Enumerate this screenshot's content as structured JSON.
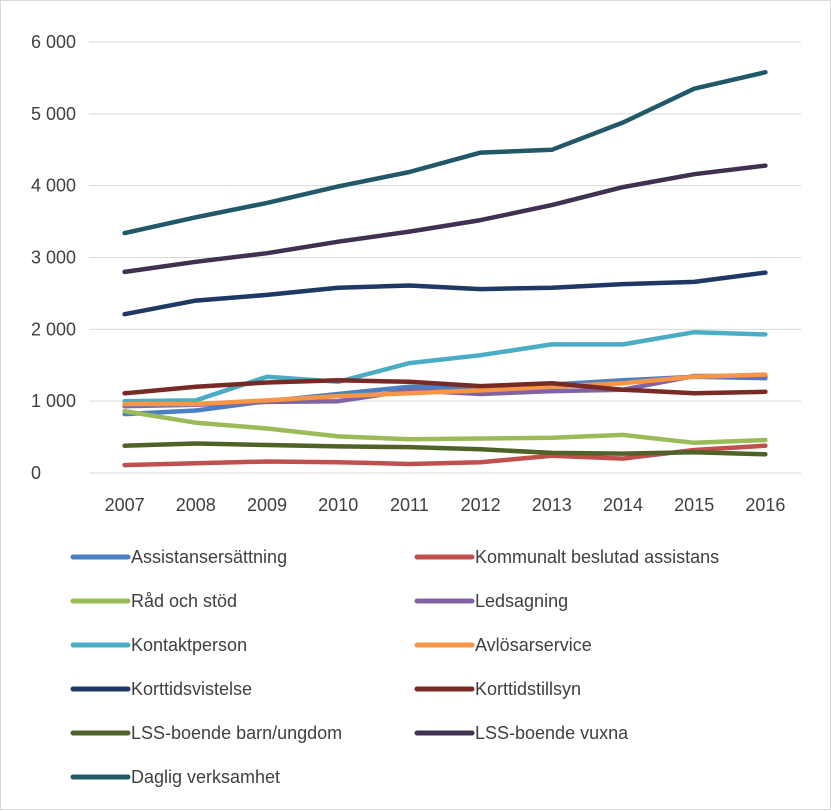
{
  "chart_data": {
    "type": "line",
    "title": "",
    "xlabel": "",
    "ylabel": "",
    "categories": [
      "2007",
      "2008",
      "2009",
      "2010",
      "2011",
      "2012",
      "2013",
      "2014",
      "2015",
      "2016"
    ],
    "ylim": [
      0,
      6000
    ],
    "yticks": [
      0,
      1000,
      2000,
      3000,
      4000,
      5000,
      6000
    ],
    "ytick_labels": [
      "0",
      "1 000",
      "2 000",
      "3 000",
      "4 000",
      "5 000",
      "6 000"
    ],
    "grid": "horizontal",
    "legend_position": "bottom",
    "series": [
      {
        "name": "Assistansersättning",
        "color": "#4a7fc1",
        "values": [
          820,
          870,
          1000,
          1100,
          1200,
          1180,
          1230,
          1290,
          1340,
          1320
        ]
      },
      {
        "name": "Kommunalt beslutad assistans",
        "color": "#c0504d",
        "values": [
          110,
          135,
          160,
          150,
          125,
          150,
          240,
          200,
          320,
          380
        ]
      },
      {
        "name": "Råd och stöd",
        "color": "#9bbb59",
        "values": [
          860,
          700,
          620,
          510,
          470,
          480,
          490,
          530,
          420,
          460
        ]
      },
      {
        "name": "Ledsagning",
        "color": "#8064a2",
        "values": [
          930,
          950,
          990,
          1000,
          1150,
          1100,
          1140,
          1160,
          1350,
          1350
        ]
      },
      {
        "name": "Kontaktperson",
        "color": "#4bacc6",
        "values": [
          1000,
          1010,
          1340,
          1270,
          1530,
          1640,
          1790,
          1790,
          1960,
          1930
        ]
      },
      {
        "name": "Avlösarservice",
        "color": "#f79646",
        "values": [
          960,
          960,
          1010,
          1070,
          1110,
          1150,
          1200,
          1250,
          1340,
          1370
        ]
      },
      {
        "name": "Korttidsvistelse",
        "color": "#1f3864",
        "values": [
          2210,
          2400,
          2480,
          2580,
          2610,
          2560,
          2580,
          2630,
          2660,
          2790
        ]
      },
      {
        "name": "Korttidstillsyn",
        "color": "#772a26",
        "values": [
          1110,
          1200,
          1260,
          1290,
          1270,
          1210,
          1250,
          1160,
          1110,
          1130
        ]
      },
      {
        "name": "LSS-boende barn/ungdom",
        "color": "#4f6228",
        "values": [
          380,
          410,
          390,
          370,
          360,
          330,
          280,
          270,
          290,
          260
        ]
      },
      {
        "name": "LSS-boende vuxna",
        "color": "#403151",
        "values": [
          2800,
          2940,
          3060,
          3220,
          3360,
          3520,
          3730,
          3980,
          4160,
          4280
        ]
      },
      {
        "name": "Daglig verksamhet",
        "color": "#215968",
        "values": [
          3340,
          3560,
          3760,
          3990,
          4190,
          4460,
          4500,
          4880,
          5350,
          5580
        ]
      }
    ]
  }
}
